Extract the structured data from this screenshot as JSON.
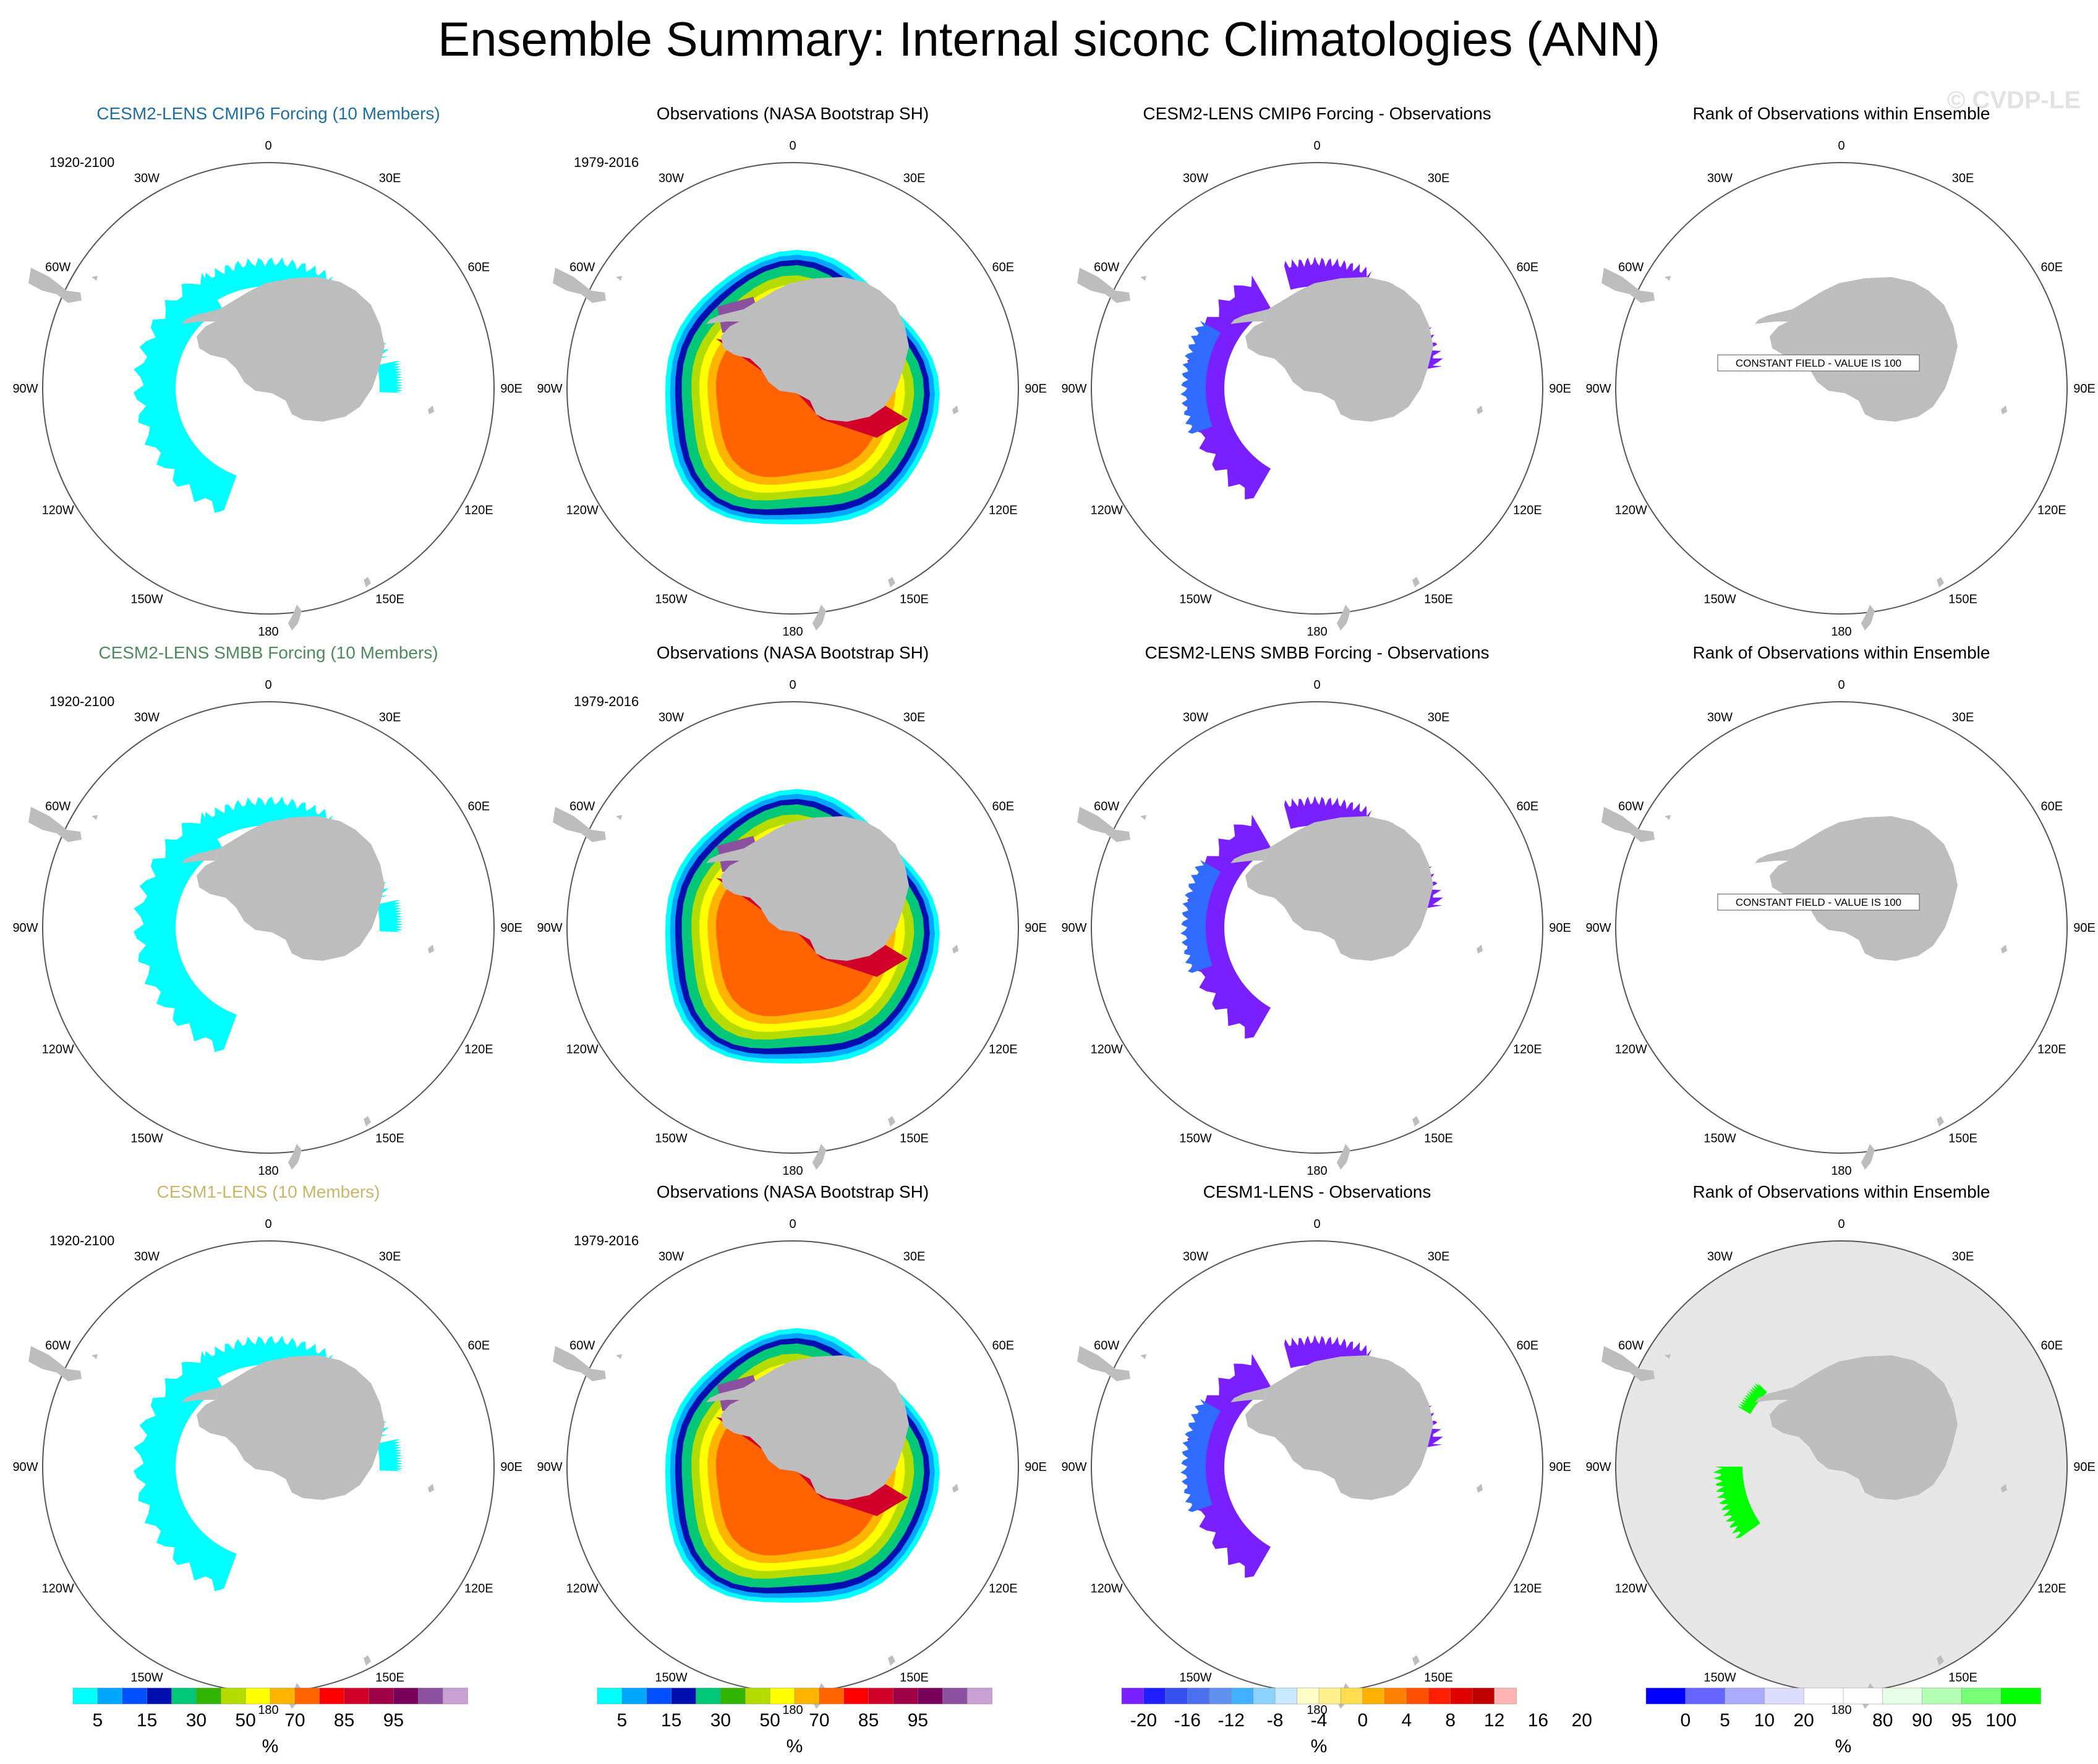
{
  "title": "Ensemble Summary: Internal siconc Climatologies (ANN)",
  "watermark": "© CVDP-LE",
  "lon_labels": [
    "0",
    "30E",
    "60E",
    "90E",
    "120E",
    "150E",
    "180",
    "150W",
    "120W",
    "90W",
    "60W",
    "30W"
  ],
  "colors": {
    "land": "#bdbdbd",
    "circle": "#555555",
    "cyan": "#00ffff",
    "purple": "#7a1fff",
    "blue_edge": "#2f6cff",
    "green": "#00ff00",
    "rank_bg": "#e6e6e6"
  },
  "panels": [
    {
      "title": "CESM2-LENS CMIP6 Forcing (10 Members)",
      "title_color": "#1e6fa0",
      "period": "1920-2100",
      "kind": "model"
    },
    {
      "title": "Observations (NASA Bootstrap SH)",
      "title_color": "#000000",
      "period": "1979-2016",
      "kind": "obs"
    },
    {
      "title": "CESM2-LENS CMIP6 Forcing - Observations",
      "title_color": "#000000",
      "period": "",
      "kind": "diff"
    },
    {
      "title": "Rank of Observations within Ensemble",
      "title_color": "#000000",
      "period": "",
      "kind": "rank_const",
      "constant_note": "CONSTANT FIELD - VALUE IS 100"
    },
    {
      "title": "CESM2-LENS SMBB Forcing (10 Members)",
      "title_color": "#4e8a5b",
      "period": "1920-2100",
      "kind": "model"
    },
    {
      "title": "Observations (NASA Bootstrap SH)",
      "title_color": "#000000",
      "period": "1979-2016",
      "kind": "obs"
    },
    {
      "title": "CESM2-LENS SMBB Forcing - Observations",
      "title_color": "#000000",
      "period": "",
      "kind": "diff"
    },
    {
      "title": "Rank of Observations within Ensemble",
      "title_color": "#000000",
      "period": "",
      "kind": "rank_const",
      "constant_note": "CONSTANT FIELD - VALUE IS 100"
    },
    {
      "title": "CESM1-LENS (10 Members)",
      "title_color": "#c9b66a",
      "period": "1920-2100",
      "kind": "model"
    },
    {
      "title": "Observations (NASA Bootstrap SH)",
      "title_color": "#000000",
      "period": "1979-2016",
      "kind": "obs"
    },
    {
      "title": "CESM1-LENS - Observations",
      "title_color": "#000000",
      "period": "",
      "kind": "diff"
    },
    {
      "title": "Rank of Observations within Ensemble",
      "title_color": "#000000",
      "period": "",
      "kind": "rank"
    }
  ],
  "colorbars": [
    {
      "colors": [
        "#00ffff",
        "#00a6ff",
        "#0050ff",
        "#0010b0",
        "#00c878",
        "#32b400",
        "#b4dc00",
        "#ffff00",
        "#ffb400",
        "#ff6400",
        "#ff0000",
        "#d20028",
        "#a00046",
        "#78005a",
        "#8c50a0",
        "#c8a0d2"
      ],
      "labels": [
        "5",
        "15",
        "30",
        "50",
        "70",
        "85",
        "95"
      ],
      "label_positions": [
        1,
        3,
        5,
        7,
        9,
        11,
        13
      ],
      "unit": "%"
    },
    {
      "colors": [
        "#00ffff",
        "#00a6ff",
        "#0050ff",
        "#0010b0",
        "#00c878",
        "#32b400",
        "#b4dc00",
        "#ffff00",
        "#ffb400",
        "#ff6400",
        "#ff0000",
        "#d20028",
        "#a00046",
        "#78005a",
        "#8c50a0",
        "#c8a0d2"
      ],
      "labels": [
        "5",
        "15",
        "30",
        "50",
        "70",
        "85",
        "95"
      ],
      "label_positions": [
        1,
        3,
        5,
        7,
        9,
        11,
        13
      ],
      "unit": "%"
    },
    {
      "colors": [
        "#7a1fff",
        "#2020ff",
        "#3450f0",
        "#4a70f0",
        "#6090f0",
        "#40b0ff",
        "#8cd2ff",
        "#c8e8ff",
        "#ffffc8",
        "#fff08c",
        "#ffdc50",
        "#ffb000",
        "#ff8000",
        "#ff5000",
        "#ff1e00",
        "#e00000",
        "#c00000",
        "#ffb4b4"
      ],
      "labels": [
        "-20",
        "-16",
        "-12",
        "-8",
        "-4",
        "0",
        "4",
        "8",
        "12",
        "16",
        "20"
      ],
      "label_positions": [
        1,
        3,
        5,
        7,
        9,
        11,
        13,
        15,
        17,
        19,
        21
      ],
      "unit": "%"
    },
    {
      "colors": [
        "#0000ff",
        "#6666ff",
        "#aaaaff",
        "#dcdcff",
        "#ffffff",
        "#ffffff",
        "#e6ffe6",
        "#b4ffb4",
        "#78ff78",
        "#00ff00"
      ],
      "labels": [
        "0",
        "5",
        "10",
        "20",
        "80",
        "90",
        "95",
        "100"
      ],
      "label_positions": [
        1,
        2,
        3,
        4,
        6,
        7,
        8,
        9
      ],
      "unit": "%"
    }
  ]
}
